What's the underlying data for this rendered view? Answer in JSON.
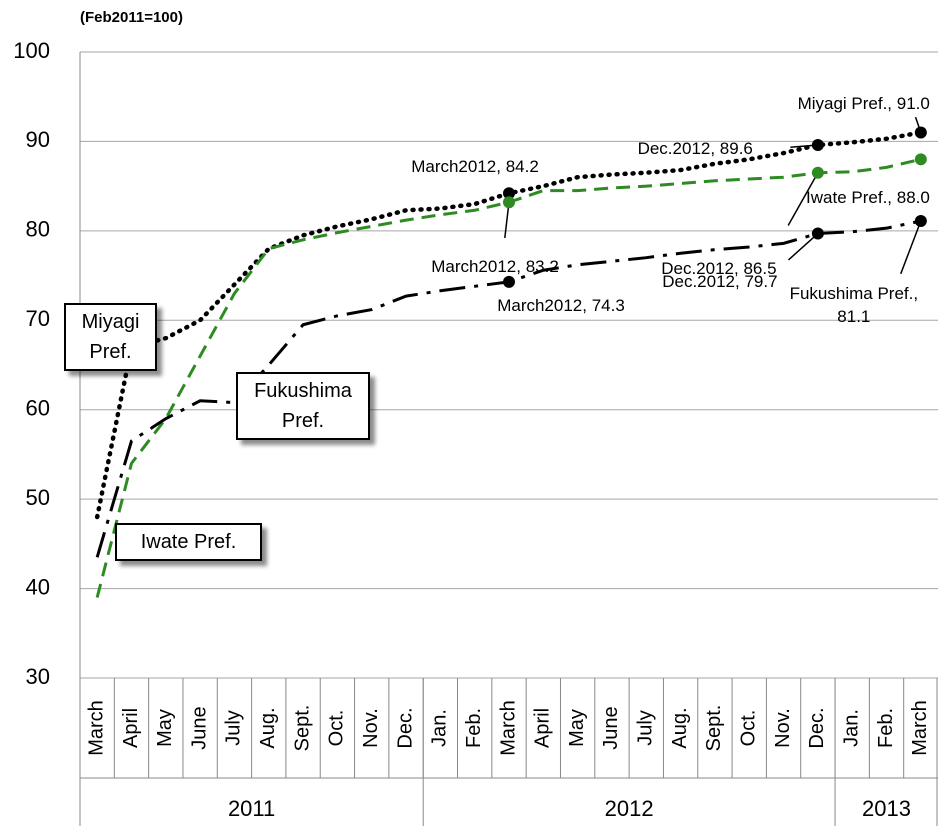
{
  "chart_data": {
    "type": "line",
    "subtitle": "(Feb2011=100)",
    "categories": [
      "March",
      "April",
      "May",
      "June",
      "July",
      "Aug.",
      "Sept.",
      "Oct.",
      "Nov.",
      "Dec.",
      "Jan.",
      "Feb.",
      "March",
      "April",
      "May",
      "June",
      "July",
      "Aug.",
      "Sept.",
      "Oct.",
      "Nov.",
      "Dec.",
      "Jan.",
      "Feb.",
      "March"
    ],
    "year_groups": [
      {
        "label": "2011",
        "count": 10
      },
      {
        "label": "2012",
        "count": 12
      },
      {
        "label": "2013",
        "count": 3
      }
    ],
    "ylim": [
      30,
      100
    ],
    "yticks": [
      30,
      40,
      50,
      60,
      70,
      80,
      90,
      100
    ],
    "grid": true,
    "series": [
      {
        "name": "Miyagi Pref.",
        "color": "#000000",
        "dash": "dotted",
        "values": [
          48,
          67,
          68,
          70,
          74,
          78,
          79.5,
          80.5,
          81.3,
          82.3,
          82.5,
          83,
          84.2,
          85,
          86,
          86.3,
          86.5,
          86.8,
          87.5,
          88,
          88.7,
          89.6,
          89.9,
          90.3,
          91.0
        ],
        "value_labels": [
          null,
          null,
          null,
          null,
          null,
          null,
          null,
          null,
          null,
          null,
          null,
          null,
          "March2012, 84.2",
          null,
          null,
          null,
          null,
          null,
          null,
          null,
          null,
          "Dec.2012, 89.6",
          null,
          null,
          "Miyagi Pref., 91.0"
        ]
      },
      {
        "name": "Iwate Pref.",
        "color": "#2e8b22",
        "dash": "dashed",
        "values": [
          39,
          54,
          59,
          66,
          73,
          78,
          79,
          79.8,
          80.5,
          81.2,
          81.8,
          82.3,
          83.2,
          84.5,
          84.5,
          84.8,
          85,
          85.3,
          85.6,
          85.8,
          86,
          86.5,
          86.6,
          87.1,
          88.0
        ],
        "value_labels": [
          null,
          null,
          null,
          null,
          null,
          null,
          null,
          null,
          null,
          null,
          null,
          null,
          "March2012, 83.2",
          null,
          null,
          null,
          null,
          null,
          null,
          null,
          null,
          "Dec.2012, 86.5",
          null,
          null,
          "Iwate Pref., 88.0"
        ]
      },
      {
        "name": "Fukushima Pref.",
        "color": "#000000",
        "dash": "dashdot",
        "values": [
          43.5,
          56.5,
          59,
          61,
          60.8,
          65,
          69.5,
          70.5,
          71.2,
          72.7,
          73.3,
          73.8,
          74.3,
          75.6,
          76.2,
          76.6,
          77,
          77.5,
          77.9,
          78.2,
          78.6,
          79.7,
          79.9,
          80.3,
          81.1
        ],
        "value_labels": [
          null,
          null,
          null,
          null,
          null,
          null,
          null,
          null,
          null,
          null,
          null,
          null,
          "March2012, 74.3",
          null,
          null,
          null,
          null,
          null,
          null,
          null,
          null,
          "Dec.2012, 79.7",
          null,
          null,
          "Fukushima Pref., 81.1"
        ]
      }
    ]
  }
}
